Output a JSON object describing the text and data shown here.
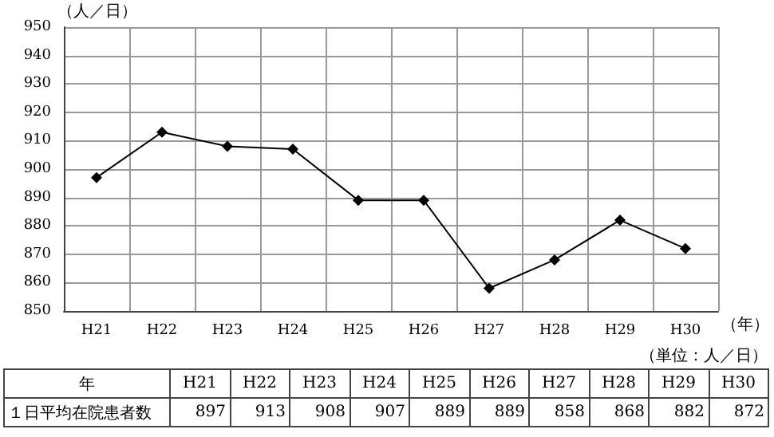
{
  "chart_data": [
    {
      "type": "line",
      "ylabel": "（人／日）",
      "xlabel": "（年）",
      "categories": [
        "H21",
        "H22",
        "H23",
        "H24",
        "H25",
        "H26",
        "H27",
        "H28",
        "H29",
        "H30"
      ],
      "series": [
        {
          "color": "#000000",
          "values": [
            897,
            913,
            908,
            907,
            889,
            889,
            858,
            868,
            882,
            872
          ]
        }
      ],
      "ylim": [
        850,
        950
      ],
      "yticks": [
        850,
        860,
        870,
        880,
        890,
        900,
        910,
        920,
        930,
        940,
        950
      ],
      "grid": true,
      "marker": "diamond",
      "line_style": "solid"
    },
    {
      "type": "other",
      "annotations": [
        "（単位：人／日）",
        "年",
        "１日平均在院患者数",
        "897",
        "913",
        "908",
        "907",
        "889",
        "889",
        "858",
        "868",
        "882",
        "872"
      ],
      "categories": [
        "H21",
        "H22",
        "H23",
        "H24",
        "H25",
        "H26",
        "H27",
        "H28",
        "H29",
        "H30"
      ]
    }
  ]
}
